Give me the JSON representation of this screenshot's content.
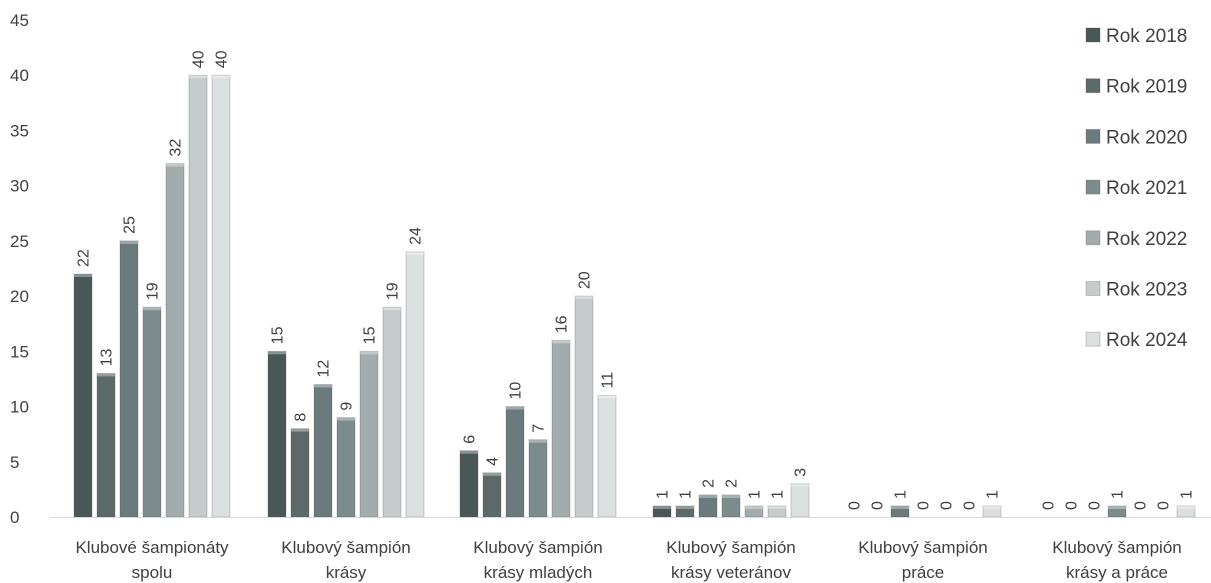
{
  "chart_data": {
    "type": "bar",
    "title": "",
    "xlabel": "",
    "ylabel": "",
    "ylim": [
      0,
      45
    ],
    "yticks": [
      0,
      5,
      10,
      15,
      20,
      25,
      30,
      35,
      40,
      45
    ],
    "grid": false,
    "legend_position": "right",
    "categories": [
      [
        "Klubové šampionáty",
        "spolu"
      ],
      [
        "Klubový šampión",
        "krásy"
      ],
      [
        "Klubový šampión",
        "krásy mladých"
      ],
      [
        "Klubový šampión",
        "krásy veteránov"
      ],
      [
        "Klubový šampión",
        "práce"
      ],
      [
        "Klubový šampión",
        "krásy a práce"
      ]
    ],
    "series": [
      {
        "name": "Rok 2018",
        "color": "#4b5656",
        "values": [
          22,
          15,
          6,
          1,
          0,
          0
        ]
      },
      {
        "name": "Rok 2019",
        "color": "#5d6868",
        "values": [
          13,
          8,
          4,
          1,
          0,
          0
        ]
      },
      {
        "name": "Rok 2020",
        "color": "#6b7a7d",
        "values": [
          25,
          12,
          10,
          2,
          1,
          0
        ]
      },
      {
        "name": "Rok 2021",
        "color": "#7c8b8b",
        "values": [
          19,
          9,
          7,
          2,
          0,
          1
        ]
      },
      {
        "name": "Rok 2022",
        "color": "#a3acac",
        "values": [
          32,
          15,
          16,
          1,
          0,
          0
        ]
      },
      {
        "name": "Rok 2023",
        "color": "#c6cbcb",
        "values": [
          40,
          19,
          20,
          1,
          0,
          0
        ]
      },
      {
        "name": "Rok 2024",
        "color": "#dcdfdf",
        "values": [
          40,
          24,
          11,
          3,
          1,
          1
        ]
      }
    ]
  }
}
